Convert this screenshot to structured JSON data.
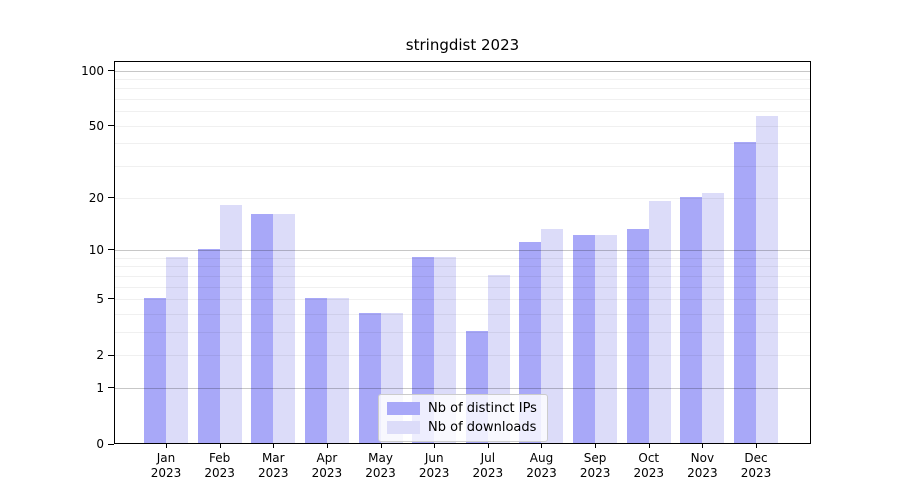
{
  "title": "stringdist 2023",
  "colors": {
    "ips_bar": "#a8a8f8",
    "downloads_bar": "#dcdcf9",
    "spine": "#000000",
    "grid_minor": "#f0f0f0",
    "grid_major": "#c7c7c7",
    "legend_border": "#cccccc"
  },
  "legend": {
    "items": [
      {
        "label": "Nb of distinct IPs",
        "series": "ips"
      },
      {
        "label": "Nb of downloads",
        "series": "downloads"
      }
    ]
  },
  "y_axis": {
    "tick_labels": [
      "100",
      "50",
      "20",
      "10",
      "5",
      "2",
      "1",
      "0"
    ],
    "tick_values": [
      100,
      50,
      20,
      10,
      5,
      2,
      1,
      0
    ]
  },
  "x_axis": {
    "year": "2023",
    "months": [
      "Jan",
      "Feb",
      "Mar",
      "Apr",
      "May",
      "Jun",
      "Jul",
      "Aug",
      "Sep",
      "Oct",
      "Nov",
      "Dec"
    ]
  },
  "chart_data": {
    "type": "bar",
    "title": "stringdist 2023",
    "categories": [
      "Jan 2023",
      "Feb 2023",
      "Mar 2023",
      "Apr 2023",
      "May 2023",
      "Jun 2023",
      "Jul 2023",
      "Aug 2023",
      "Sep 2023",
      "Oct 2023",
      "Nov 2023",
      "Dec 2023"
    ],
    "series": [
      {
        "name": "Nb of distinct IPs",
        "values": [
          5,
          10,
          16,
          5,
          4,
          9,
          3,
          11,
          12,
          13,
          20,
          40
        ]
      },
      {
        "name": "Nb of downloads",
        "values": [
          9,
          18,
          16,
          5,
          4,
          9,
          7,
          13,
          12,
          19,
          21,
          56
        ]
      }
    ],
    "xlabel": "",
    "ylabel": "",
    "y_scale": "log10(value+1)",
    "ylim": [
      0,
      100
    ],
    "y_ticks": [
      0,
      1,
      2,
      5,
      10,
      20,
      50,
      100
    ],
    "major_gridlines": [
      1,
      10,
      100
    ],
    "minor_gridlines": [
      2,
      3,
      4,
      5,
      6,
      7,
      8,
      9,
      20,
      30,
      40,
      50,
      60,
      70,
      80,
      90
    ],
    "grid": true,
    "legend_position": "lower center"
  }
}
